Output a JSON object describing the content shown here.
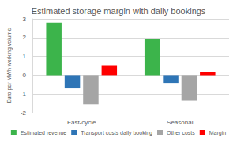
{
  "chart_data": {
    "type": "bar",
    "title": "Estimated storage margin with daily bookings",
    "ylabel": "Euro per MWh working volume",
    "categories": [
      "Fast-cycle",
      "Seasonal"
    ],
    "series": [
      {
        "name": "Estimated revenue",
        "color": "#3cb44b",
        "values": [
          2.8,
          1.95
        ]
      },
      {
        "name": "Transport costs daily booking",
        "color": "#2e75b6",
        "values": [
          -0.7,
          -0.45
        ]
      },
      {
        "name": "Other costs",
        "color": "#a5a5a5",
        "values": [
          -1.55,
          -1.35
        ]
      },
      {
        "name": "Margin",
        "color": "#ff0000",
        "values": [
          0.5,
          0.15
        ]
      }
    ],
    "ylim": [
      -2,
      3
    ],
    "yticks": [
      -2,
      -1,
      0,
      1,
      2,
      3
    ],
    "grid": true,
    "legend": "bottom"
  }
}
